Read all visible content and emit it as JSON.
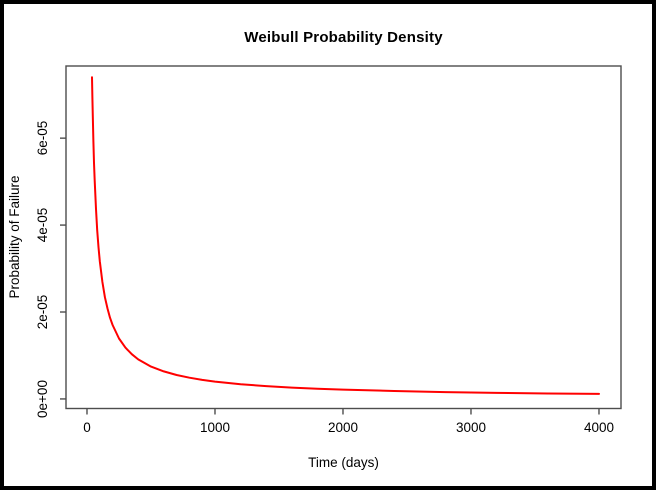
{
  "window": {
    "background_color": "#ffffff",
    "frame_color": "#000000"
  },
  "chart_data": {
    "type": "line",
    "title": "Weibull Probability Density",
    "xlabel": "Time (days)",
    "ylabel": "Probability of Failure",
    "grid": false,
    "legend": "none",
    "axis_color": "#4d4d4d",
    "text_color": "#000000",
    "xlim": [
      -164,
      4172
    ],
    "ylim": [
      -2.2e-06,
      7.66e-05
    ],
    "x_ticks": {
      "values": [
        0,
        1000,
        2000,
        3000,
        4000
      ],
      "labels": [
        "0",
        "1000",
        "2000",
        "3000",
        "4000"
      ]
    },
    "y_ticks": {
      "values": [
        0,
        2e-05,
        4e-05,
        6e-05
      ],
      "labels": [
        "0e+00",
        "2e-05",
        "4e-05",
        "6e-05"
      ]
    },
    "series": [
      {
        "name": "weibull-density",
        "color": "#ff0000",
        "x": [
          39,
          42,
          45,
          50,
          55,
          60,
          70,
          80,
          90,
          100,
          120,
          140,
          160,
          180,
          200,
          250,
          300,
          350,
          400,
          500,
          600,
          700,
          800,
          900,
          1000,
          1200,
          1400,
          1600,
          1800,
          2000,
          2400,
          2800,
          3200,
          3600,
          4000
        ],
        "y": [
          7.4e-05,
          6.92e-05,
          6.51e-05,
          5.92e-05,
          5.43e-05,
          5.02e-05,
          4.37e-05,
          3.88e-05,
          3.49e-05,
          3.17e-05,
          2.69e-05,
          2.34e-05,
          2.08e-05,
          1.87e-05,
          1.7e-05,
          1.39e-05,
          1.18e-05,
          1.03e-05,
          9.1e-06,
          7.45e-06,
          6.33e-06,
          5.5e-06,
          4.88e-06,
          4.39e-06,
          3.99e-06,
          3.39e-06,
          2.95e-06,
          2.61e-06,
          2.36e-06,
          2.14e-06,
          1.82e-06,
          1.58e-06,
          1.4e-06,
          1.26e-06,
          1.15e-06
        ]
      }
    ]
  }
}
